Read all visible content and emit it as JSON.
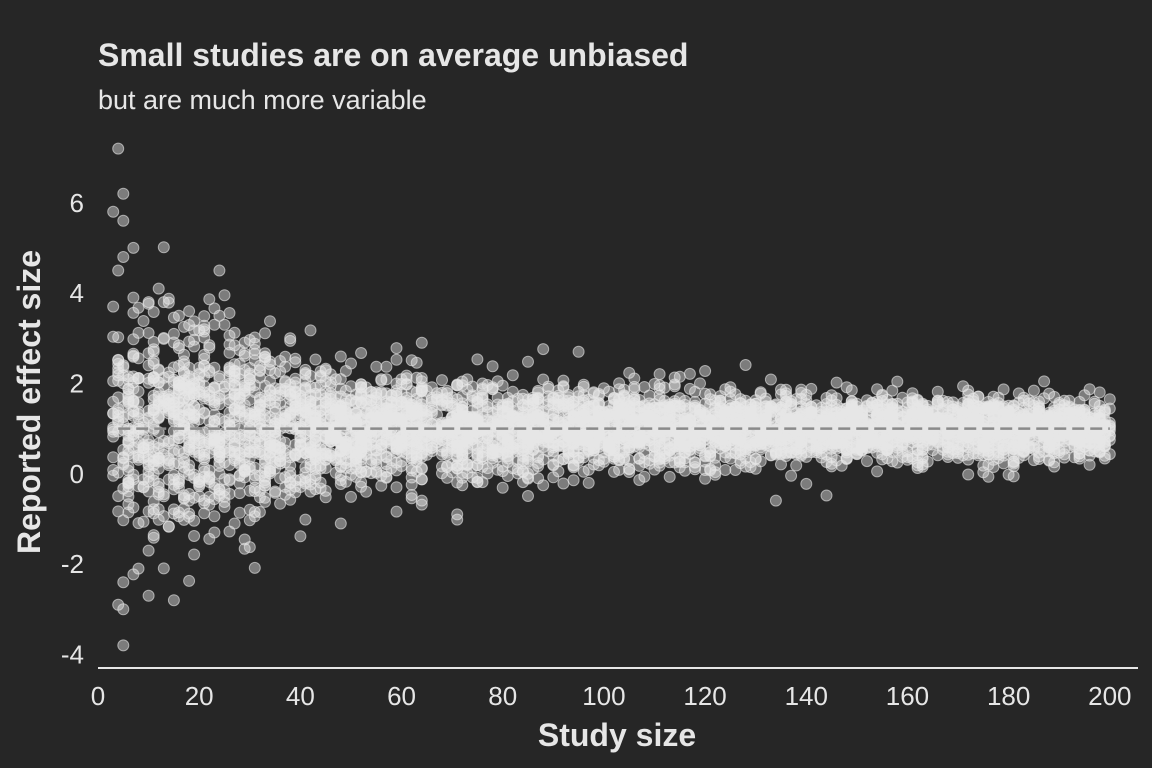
{
  "chart_data": {
    "type": "scatter",
    "title": "Small studies are on average unbiased",
    "subtitle": "but are much more variable",
    "xlabel": "Study size",
    "ylabel": "Reported effect size",
    "xlim": [
      0,
      203
    ],
    "ylim": [
      -4.3,
      7.5
    ],
    "x_ticks": [
      0,
      20,
      40,
      60,
      80,
      100,
      120,
      140,
      160,
      180,
      200
    ],
    "y_ticks": [
      -4,
      -2,
      0,
      2,
      4,
      6
    ],
    "x_ticks_labels": [
      "0",
      "20",
      "40",
      "60",
      "80",
      "100",
      "120",
      "140",
      "160",
      "180",
      "200"
    ],
    "y_ticks_labels": [
      "-4",
      "-2",
      "0",
      "2",
      "4",
      "6"
    ],
    "reference_line": {
      "y": 1,
      "style": "dashed"
    },
    "grid": false,
    "point_color": "#e6e6e6",
    "line_color": "#8a8a8a",
    "outlier_points": [
      {
        "x": 4,
        "y": 7.2
      },
      {
        "x": 5,
        "y": 6.2
      },
      {
        "x": 3,
        "y": 5.8
      },
      {
        "x": 5,
        "y": 5.6
      },
      {
        "x": 7,
        "y": 5.0
      },
      {
        "x": 5,
        "y": 4.8
      },
      {
        "x": 24,
        "y": 4.5
      },
      {
        "x": 4,
        "y": 4.5
      },
      {
        "x": 12,
        "y": 4.1
      },
      {
        "x": 7,
        "y": 3.9
      },
      {
        "x": 13,
        "y": 3.8
      },
      {
        "x": 3,
        "y": 3.7
      },
      {
        "x": 16,
        "y": 3.5
      },
      {
        "x": 24,
        "y": 3.5
      },
      {
        "x": 25,
        "y": 3.3
      },
      {
        "x": 38,
        "y": 3.0
      },
      {
        "x": 64,
        "y": 2.9
      },
      {
        "x": 95,
        "y": 2.7
      },
      {
        "x": 48,
        "y": -1.1
      },
      {
        "x": 71,
        "y": -0.9
      },
      {
        "x": 27,
        "y": -1.1
      },
      {
        "x": 23,
        "y": -1.3
      },
      {
        "x": 10,
        "y": -1.7
      },
      {
        "x": 5,
        "y": -2.4
      },
      {
        "x": 4,
        "y": -2.9
      },
      {
        "x": 5,
        "y": -3.0
      },
      {
        "x": 10,
        "y": -2.7
      },
      {
        "x": 15,
        "y": -2.8
      },
      {
        "x": 5,
        "y": -3.8
      },
      {
        "x": 8,
        "y": -2.1
      }
    ],
    "simulated_bulk": {
      "n_points": 5000,
      "x_range": [
        3,
        200
      ],
      "center": 1,
      "spread_formula": "sd = 4.4 / sqrt(x)"
    }
  }
}
